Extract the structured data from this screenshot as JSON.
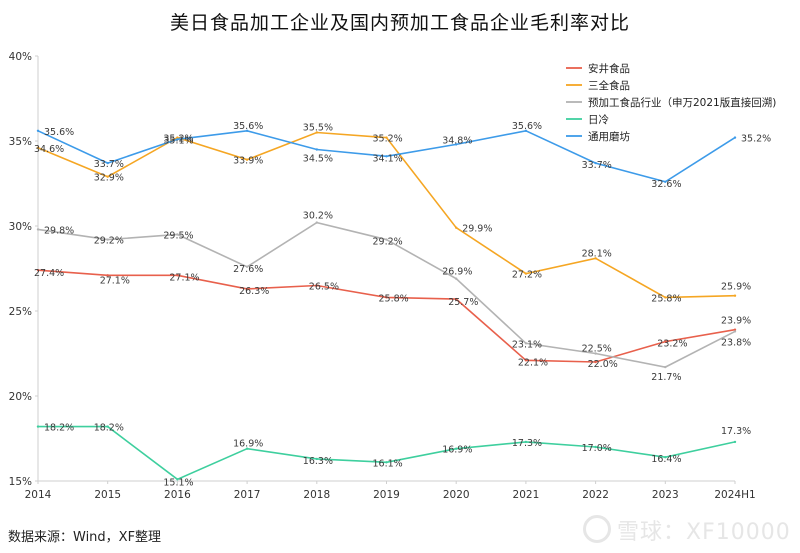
{
  "chart_data": {
    "type": "line",
    "title": "美日食品加工企业及国内预加工食品企业毛利率对比",
    "categories": [
      "2014",
      "2015",
      "2016",
      "2017",
      "2018",
      "2019",
      "2020",
      "2021",
      "2022",
      "2023",
      "2024H1"
    ],
    "ylim": [
      15,
      40
    ],
    "yticks": [
      "15%",
      "20%",
      "25%",
      "30%",
      "35%",
      "40%"
    ],
    "grid": false,
    "legend_position": "top-right",
    "series": [
      {
        "name": "安井食品",
        "color": "#e8604c",
        "values": [
          27.4,
          27.1,
          27.1,
          26.3,
          26.5,
          25.8,
          25.7,
          22.1,
          22.0,
          23.2,
          23.9
        ],
        "labels": [
          "27.4%",
          "27.1%",
          "27.1%",
          "26.3%",
          "26.5%",
          "25.8%",
          "25.7%",
          "22.1%",
          "22.0%",
          "23.2%",
          "23.9%"
        ]
      },
      {
        "name": "三全食品",
        "color": "#f5a623",
        "values": [
          34.6,
          32.9,
          35.2,
          33.9,
          35.5,
          35.2,
          29.9,
          27.2,
          28.1,
          25.8,
          25.9
        ],
        "labels": [
          "34.6%",
          "32.9%",
          "35.2%",
          "33.9%",
          "35.5%",
          "35.2%",
          "29.9%",
          "27.2%",
          "28.1%",
          "25.8%",
          "25.9%"
        ]
      },
      {
        "name": "预加工食品行业（申万2021版直接回溯)",
        "color": "#b3b3b3",
        "values": [
          29.8,
          29.2,
          29.5,
          27.6,
          30.2,
          29.2,
          26.9,
          23.1,
          22.5,
          21.7,
          23.8
        ],
        "labels": [
          "29.8%",
          "29.2%",
          "29.5%",
          "27.6%",
          "30.2%",
          "29.2%",
          "26.9%",
          "23.1%",
          "22.5%",
          "21.7%",
          "23.8%"
        ]
      },
      {
        "name": "日冷",
        "color": "#3ecf9e",
        "values": [
          18.2,
          18.2,
          15.1,
          16.9,
          16.3,
          16.1,
          16.9,
          17.3,
          17.0,
          16.4,
          17.3
        ],
        "labels": [
          "18.2%",
          "18.2%",
          "15.1%",
          "16.9%",
          "16.3%",
          "16.1%",
          "16.9%",
          "17.3%",
          "17.0%",
          "16.4%",
          "17.3%"
        ]
      },
      {
        "name": "通用磨坊",
        "color": "#3d9be9",
        "values": [
          35.6,
          33.7,
          35.1,
          35.6,
          34.5,
          34.1,
          34.8,
          35.6,
          33.7,
          32.6,
          35.2
        ],
        "labels": [
          "35.6%",
          "33.7%",
          "35.1%",
          "35.6%",
          "34.5%",
          "34.1%",
          "34.8%",
          "35.6%",
          "33.7%",
          "32.6%",
          "35.2%"
        ]
      }
    ]
  },
  "footer": {
    "source": "数据来源：Wind，XF整理",
    "watermark": "雪球：XF10000"
  }
}
